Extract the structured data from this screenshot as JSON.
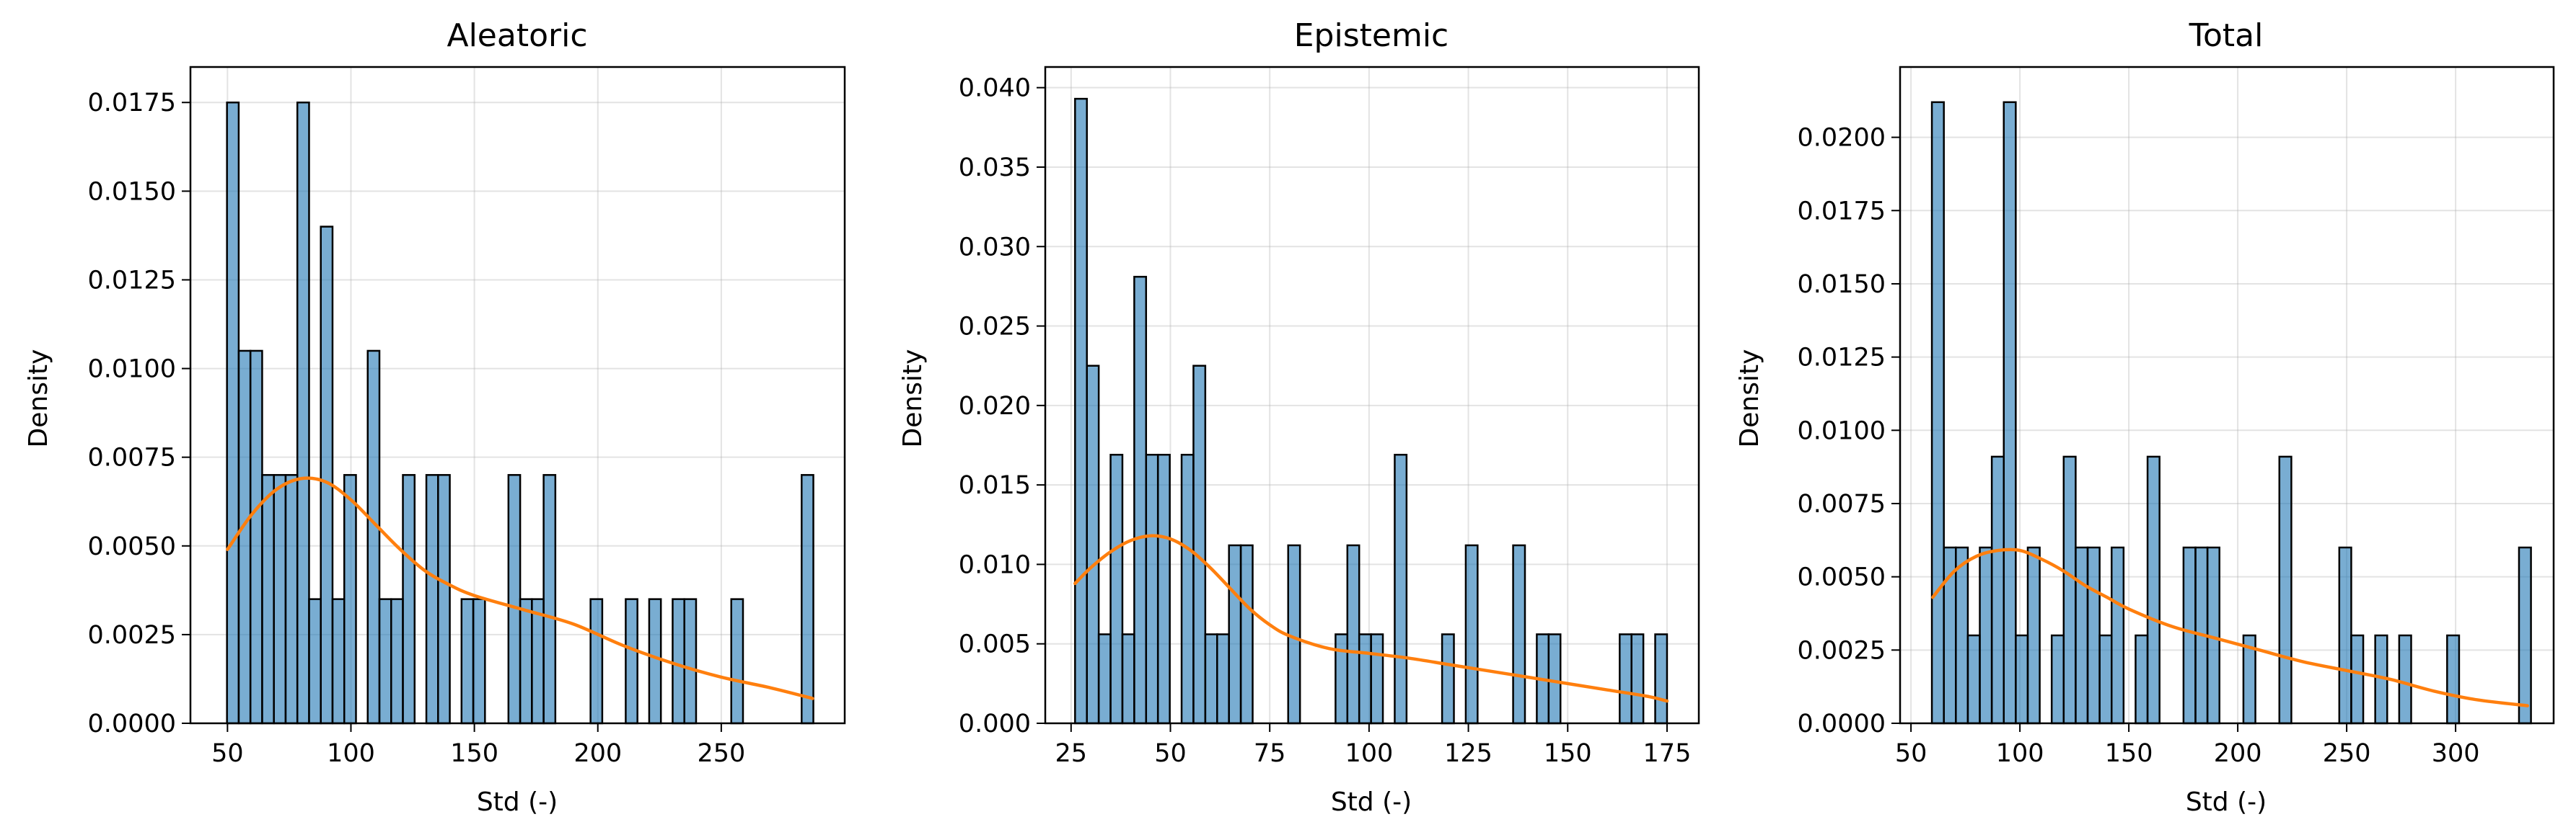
{
  "colors": {
    "bar": "#1f77b4",
    "kde": "#ff7f0e"
  },
  "chart_data": [
    {
      "type": "bar",
      "title": "Aleatoric",
      "xlabel": "Std (-)",
      "ylabel": "Density",
      "xlim": [
        35,
        300
      ],
      "ylim": [
        0,
        0.0185
      ],
      "bin_start": 49.8,
      "bin_width": 4.75,
      "xticks": [
        50,
        100,
        150,
        200,
        250
      ],
      "yticks": [
        0,
        0.0025,
        0.005,
        0.0075,
        0.01,
        0.0125,
        0.015,
        0.0175
      ],
      "ytick_labels": [
        "0.0000",
        "0.0025",
        "0.0050",
        "0.0075",
        "0.0100",
        "0.0125",
        "0.0150",
        "0.0175"
      ],
      "grid": true,
      "values": [
        0.0175,
        0.0105,
        0.0105,
        0.007,
        0.007,
        0.007,
        0.0175,
        0.0035,
        0.014,
        0.0035,
        0.007,
        0,
        0.0105,
        0.0035,
        0.0035,
        0.007,
        0,
        0.007,
        0.007,
        0,
        0.0035,
        0.0035,
        0,
        0,
        0.007,
        0.0035,
        0.0035,
        0.007,
        0,
        0,
        0,
        0.0035,
        0,
        0,
        0.0035,
        0,
        0.0035,
        0,
        0.0035,
        0.0035,
        0,
        0,
        0,
        0.0035,
        0,
        0,
        0,
        0,
        0,
        0.007
      ],
      "kde": {
        "x": [
          50,
          60,
          70,
          80,
          90,
          100,
          110,
          120,
          130,
          140,
          150,
          170,
          190,
          210,
          230,
          250,
          270,
          287
        ],
        "y": [
          0.0049,
          0.0059,
          0.0066,
          0.0069,
          0.0068,
          0.0063,
          0.0056,
          0.0049,
          0.0043,
          0.0039,
          0.0036,
          0.0032,
          0.0028,
          0.0022,
          0.0017,
          0.0013,
          0.001,
          0.0007
        ]
      }
    },
    {
      "type": "bar",
      "title": "Epistemic",
      "xlabel": "Std (-)",
      "ylabel": "Density",
      "xlim": [
        18.5,
        183
      ],
      "ylim": [
        0,
        0.0413
      ],
      "bin_start": 26,
      "bin_width": 2.98,
      "xticks": [
        25,
        50,
        75,
        100,
        125,
        150,
        175
      ],
      "yticks": [
        0,
        0.005,
        0.01,
        0.015,
        0.02,
        0.025,
        0.03,
        0.035,
        0.04
      ],
      "ytick_labels": [
        "0.000",
        "0.005",
        "0.010",
        "0.015",
        "0.020",
        "0.025",
        "0.030",
        "0.035",
        "0.040"
      ],
      "grid": true,
      "values": [
        0.0393,
        0.0225,
        0.0056,
        0.0169,
        0.0056,
        0.0281,
        0.0169,
        0.0169,
        0,
        0.0169,
        0.0225,
        0.0056,
        0.0056,
        0.0112,
        0.0112,
        0,
        0,
        0,
        0.0112,
        0,
        0,
        0,
        0.0056,
        0.0112,
        0.0056,
        0.0056,
        0,
        0.0169,
        0,
        0,
        0,
        0.0056,
        0,
        0.0112,
        0,
        0,
        0,
        0.0112,
        0,
        0.0056,
        0.0056,
        0,
        0,
        0,
        0,
        0,
        0.0056,
        0.0056,
        0,
        0.0056
      ],
      "kde": {
        "x": [
          26,
          30,
          35,
          40,
          45,
          50,
          55,
          60,
          65,
          70,
          75,
          80,
          90,
          100,
          110,
          120,
          130,
          140,
          150,
          160,
          170,
          175
        ],
        "y": [
          0.0088,
          0.0098,
          0.0108,
          0.0115,
          0.0118,
          0.0116,
          0.0109,
          0.0098,
          0.0085,
          0.0072,
          0.0062,
          0.0055,
          0.0047,
          0.0044,
          0.0041,
          0.0037,
          0.0033,
          0.0029,
          0.0025,
          0.0021,
          0.0017,
          0.0014
        ]
      }
    },
    {
      "type": "bar",
      "title": "Total",
      "xlabel": "Std (-)",
      "ylabel": "Density",
      "xlim": [
        45,
        345
      ],
      "ylim": [
        0,
        0.0224
      ],
      "bin_start": 59.6,
      "bin_width": 5.5,
      "xticks": [
        50,
        100,
        150,
        200,
        250,
        300
      ],
      "yticks": [
        0,
        0.0025,
        0.005,
        0.0075,
        0.01,
        0.0125,
        0.015,
        0.0175,
        0.02
      ],
      "ytick_labels": [
        "0.0000",
        "0.0025",
        "0.0050",
        "0.0075",
        "0.0100",
        "0.0125",
        "0.0150",
        "0.0175",
        "0.0200"
      ],
      "grid": true,
      "values": [
        0.0212,
        0.006,
        0.006,
        0.003,
        0.006,
        0.0091,
        0.0212,
        0.003,
        0.006,
        0,
        0.003,
        0.0091,
        0.006,
        0.006,
        0.003,
        0.006,
        0,
        0.003,
        0.0091,
        0,
        0,
        0.006,
        0.006,
        0.006,
        0,
        0,
        0.003,
        0,
        0,
        0.0091,
        0,
        0,
        0,
        0,
        0.006,
        0.003,
        0,
        0.003,
        0,
        0.003,
        0,
        0,
        0,
        0.003,
        0,
        0,
        0,
        0,
        0,
        0.006
      ],
      "kde": {
        "x": [
          60,
          70,
          80,
          90,
          100,
          110,
          120,
          130,
          140,
          150,
          170,
          190,
          210,
          230,
          250,
          270,
          290,
          310,
          333
        ],
        "y": [
          0.0043,
          0.0052,
          0.0057,
          0.0059,
          0.0059,
          0.0056,
          0.0052,
          0.0047,
          0.0043,
          0.0039,
          0.0033,
          0.0029,
          0.0025,
          0.0021,
          0.0018,
          0.0015,
          0.0011,
          0.0008,
          0.0006
        ]
      }
    }
  ]
}
